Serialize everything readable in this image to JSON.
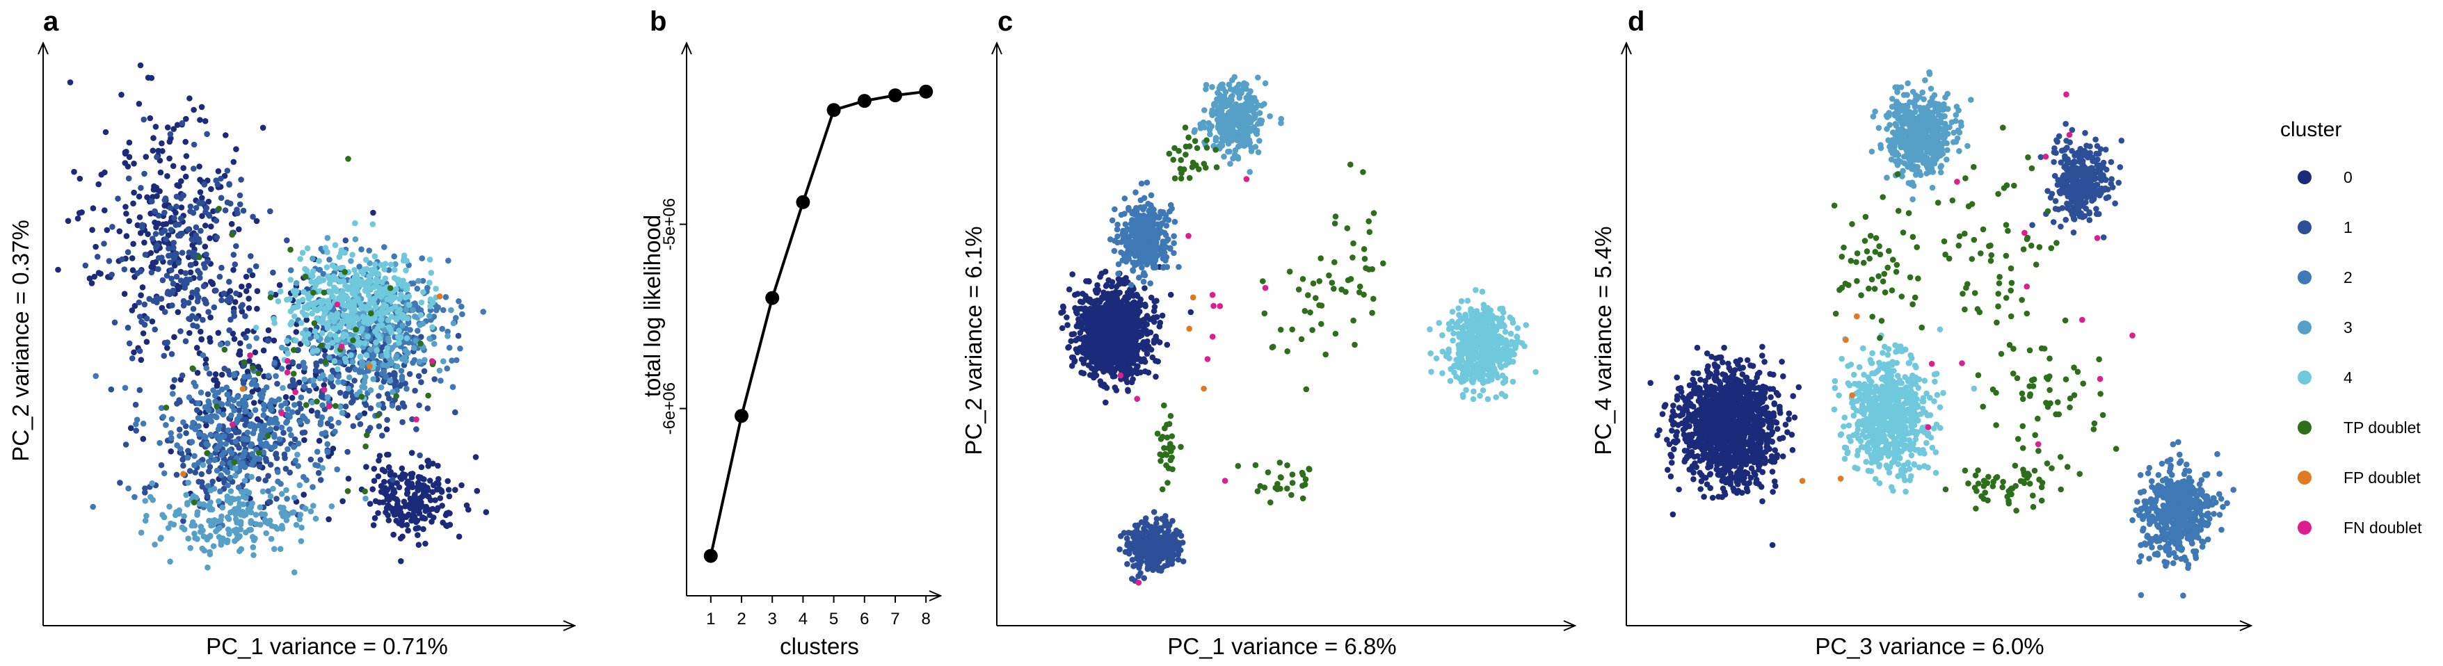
{
  "chart_data": [
    {
      "panel": "a",
      "type": "scatter",
      "xlabel": "PC_1 variance = 0.71%",
      "ylabel": "PC_2 variance = 0.37%",
      "clusters": [
        {
          "name": "0",
          "n": 650,
          "components": [
            [
              0.22,
              0.28,
              0.14,
              0.16
            ],
            [
              0.72,
              0.79,
              0.08,
              0.06
            ],
            [
              0.4,
              0.55,
              0.18,
              0.18
            ]
          ]
        },
        {
          "name": "1",
          "n": 650,
          "components": [
            [
              0.27,
              0.35,
              0.12,
              0.14
            ],
            [
              0.62,
              0.55,
              0.12,
              0.12
            ],
            [
              0.35,
              0.7,
              0.14,
              0.1
            ]
          ]
        },
        {
          "name": "2",
          "n": 550,
          "components": [
            [
              0.38,
              0.67,
              0.15,
              0.11
            ],
            [
              0.66,
              0.47,
              0.12,
              0.1
            ]
          ]
        },
        {
          "name": "3",
          "n": 400,
          "components": [
            [
              0.35,
              0.83,
              0.14,
              0.06
            ],
            [
              0.62,
              0.5,
              0.11,
              0.1
            ]
          ]
        },
        {
          "name": "4",
          "n": 420,
          "components": [
            [
              0.6,
              0.44,
              0.11,
              0.08
            ]
          ]
        },
        {
          "name": "TP doublet",
          "n": 45,
          "components": [
            [
              0.5,
              0.55,
              0.25,
              0.2
            ]
          ]
        },
        {
          "name": "FP doublet",
          "n": 4,
          "components": [
            [
              0.5,
              0.55,
              0.2,
              0.15
            ]
          ]
        },
        {
          "name": "FN doublet",
          "n": 12,
          "components": [
            [
              0.55,
              0.55,
              0.22,
              0.18
            ]
          ]
        }
      ]
    },
    {
      "panel": "b",
      "type": "line",
      "xlabel": "clusters",
      "ylabel": "total log likelihood",
      "x": [
        1,
        2,
        3,
        4,
        5,
        6,
        7,
        8
      ],
      "y": [
        -6800000,
        -6040000,
        -5400000,
        -4880000,
        -4380000,
        -4330000,
        -4300000,
        -4280000
      ],
      "xticks": [
        "1",
        "2",
        "3",
        "4",
        "5",
        "6",
        "7",
        "8"
      ],
      "yticks": [
        {
          "value": -6000000,
          "label": "-6e+06"
        },
        {
          "value": -5000000,
          "label": "-5e+06"
        }
      ],
      "xlim": [
        0.8,
        8.2
      ],
      "ylim": [
        -6990000,
        -4160000
      ]
    },
    {
      "panel": "c",
      "type": "scatter",
      "xlabel": "PC_1 variance = 6.8%",
      "ylabel": "PC_2 variance = 6.1%",
      "clusters": [
        {
          "name": "0",
          "n": 1100,
          "components": [
            [
              0.19,
              0.49,
              0.055,
              0.065
            ]
          ]
        },
        {
          "name": "1",
          "n": 380,
          "components": [
            [
              0.26,
              0.88,
              0.04,
              0.035
            ]
          ]
        },
        {
          "name": "2",
          "n": 380,
          "components": [
            [
              0.25,
              0.32,
              0.04,
              0.05
            ]
          ]
        },
        {
          "name": "3",
          "n": 380,
          "components": [
            [
              0.41,
              0.1,
              0.04,
              0.05
            ]
          ]
        },
        {
          "name": "4",
          "n": 520,
          "components": [
            [
              0.86,
              0.52,
              0.05,
              0.06
            ]
          ]
        },
        {
          "name": "TP doublet",
          "n": 140,
          "components": [
            [
              0.29,
              0.7,
              0.015,
              0.08
            ],
            [
              0.55,
              0.46,
              0.08,
              0.1
            ],
            [
              0.5,
              0.76,
              0.06,
              0.03
            ],
            [
              0.63,
              0.35,
              0.04,
              0.1
            ],
            [
              0.33,
              0.17,
              0.04,
              0.06
            ]
          ]
        },
        {
          "name": "FP doublet",
          "n": 3,
          "components": [
            [
              0.32,
              0.55,
              0.1,
              0.2
            ]
          ]
        },
        {
          "name": "FN doublet",
          "n": 12,
          "components": [
            [
              0.35,
              0.5,
              0.12,
              0.25
            ]
          ]
        }
      ]
    },
    {
      "panel": "d",
      "type": "scatter",
      "xlabel": "PC_3 variance = 6.0%",
      "ylabel": "PC_4 variance = 5.4%",
      "clusters": [
        {
          "name": "0",
          "n": 1300,
          "components": [
            [
              0.15,
              0.66,
              0.065,
              0.085
            ]
          ]
        },
        {
          "name": "1",
          "n": 320,
          "components": [
            [
              0.74,
              0.22,
              0.04,
              0.06
            ]
          ]
        },
        {
          "name": "2",
          "n": 500,
          "components": [
            [
              0.9,
              0.82,
              0.05,
              0.07
            ]
          ]
        },
        {
          "name": "3",
          "n": 520,
          "components": [
            [
              0.47,
              0.13,
              0.045,
              0.06
            ]
          ]
        },
        {
          "name": "4",
          "n": 700,
          "components": [
            [
              0.42,
              0.64,
              0.055,
              0.085
            ]
          ]
        },
        {
          "name": "TP doublet",
          "n": 220,
          "components": [
            [
              0.4,
              0.37,
              0.08,
              0.12
            ],
            [
              0.6,
              0.33,
              0.08,
              0.12
            ],
            [
              0.68,
              0.62,
              0.08,
              0.1
            ],
            [
              0.63,
              0.77,
              0.08,
              0.04
            ]
          ]
        },
        {
          "name": "FP doublet",
          "n": 5,
          "components": [
            [
              0.33,
              0.62,
              0.05,
              0.15
            ]
          ]
        },
        {
          "name": "FN doublet",
          "n": 14,
          "components": [
            [
              0.6,
              0.45,
              0.2,
              0.3
            ]
          ]
        }
      ]
    }
  ],
  "legend": {
    "title": "cluster",
    "entries": [
      {
        "label": "0",
        "color": "#1b2b7a"
      },
      {
        "label": "1",
        "color": "#2c4f97"
      },
      {
        "label": "2",
        "color": "#3e78b5"
      },
      {
        "label": "3",
        "color": "#56a0c8"
      },
      {
        "label": "4",
        "color": "#6fc8dc"
      },
      {
        "label": "TP doublet",
        "color": "#2d6e1b"
      },
      {
        "label": "FP doublet",
        "color": "#e07a1f"
      },
      {
        "label": "FN doublet",
        "color": "#de1e8f"
      }
    ]
  },
  "panel_letters": [
    "a",
    "b",
    "c",
    "d"
  ]
}
